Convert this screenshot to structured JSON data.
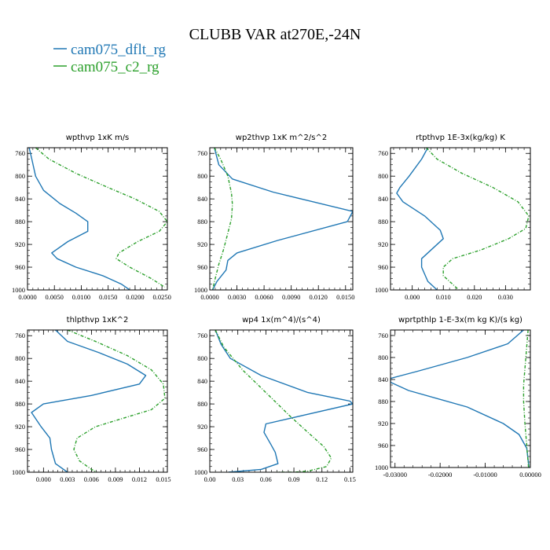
{
  "figure": {
    "title": "CLUBB VAR at270E,-24N",
    "legend": [
      {
        "label": "cam075_dflt_rg",
        "color": "#1f77b4",
        "style": "solid"
      },
      {
        "label": "cam075_c2_rg",
        "color": "#2ca02c",
        "style": "dashed"
      }
    ]
  },
  "chart_data": [
    {
      "type": "line",
      "title": "wpthvp  1xK m/s",
      "xlim": [
        0,
        0.026
      ],
      "ylim": [
        1000,
        750
      ],
      "y_inverted": true,
      "xticks": [
        "0.0000",
        "0.0050",
        "0.0100",
        "0.0150",
        "0.0200",
        "0.0250"
      ],
      "xtick_values": [
        0,
        0.005,
        0.01,
        0.015,
        0.02,
        0.025
      ],
      "yticks": [
        "760",
        "800",
        "840",
        "880",
        "920",
        "960",
        "1000"
      ],
      "ytick_values": [
        760,
        800,
        840,
        880,
        920,
        960,
        1000
      ],
      "series": [
        {
          "name": "cam075_dflt_rg",
          "x": [
            0.0003,
            0.0008,
            0.0015,
            0.003,
            0.006,
            0.009,
            0.0112,
            0.0112,
            0.0075,
            0.0045,
            0.0055,
            0.009,
            0.014,
            0.0175,
            0.019
          ],
          "y": [
            750,
            770,
            800,
            825,
            848,
            865,
            880,
            897,
            915,
            935,
            945,
            960,
            975,
            990,
            1000
          ]
        },
        {
          "name": "cam075_c2_rg",
          "x": [
            0.0015,
            0.004,
            0.009,
            0.015,
            0.02,
            0.0245,
            0.026,
            0.0245,
            0.0205,
            0.017,
            0.0165,
            0.019,
            0.023,
            0.0255
          ],
          "y": [
            750,
            770,
            795,
            820,
            840,
            862,
            880,
            897,
            915,
            935,
            945,
            960,
            980,
            995
          ]
        }
      ]
    },
    {
      "type": "line",
      "title": "wp2thvp  1xK m^2/s^2",
      "xlim": [
        0,
        0.0158
      ],
      "ylim": [
        1000,
        750
      ],
      "y_inverted": true,
      "xticks": [
        "0.0000",
        "0.0030",
        "0.0060",
        "0.0090",
        "0.0120",
        "0.0150"
      ],
      "xtick_values": [
        0,
        0.003,
        0.006,
        0.009,
        0.012,
        0.015
      ],
      "yticks": [
        "760",
        "800",
        "840",
        "880",
        "920",
        "960",
        "1000"
      ],
      "ytick_values": [
        760,
        800,
        840,
        880,
        920,
        960,
        1000
      ],
      "series": [
        {
          "name": "cam075_dflt_rg",
          "x": [
            0.0005,
            0.001,
            0.0025,
            0.007,
            0.0158,
            0.0152,
            0.0075,
            0.003,
            0.002,
            0.0018,
            0.0008,
            0.0003
          ],
          "y": [
            750,
            780,
            805,
            828,
            862,
            880,
            913,
            935,
            948,
            965,
            985,
            1000
          ]
        },
        {
          "name": "cam075_c2_rg",
          "x": [
            0.0005,
            0.0012,
            0.002,
            0.0024,
            0.0025,
            0.0024,
            0.002,
            0.0015,
            0.001,
            0.0006,
            0.0003
          ],
          "y": [
            750,
            770,
            800,
            830,
            850,
            875,
            900,
            930,
            955,
            980,
            1000
          ]
        }
      ]
    },
    {
      "type": "line",
      "title": "rtpthvp  1E-3x(kg/kg) K",
      "xlim": [
        -0.007,
        0.038
      ],
      "ylim": [
        1000,
        750
      ],
      "y_inverted": true,
      "xticks": [
        "0.000",
        "0.010",
        "0.020",
        "0.030"
      ],
      "xtick_values": [
        0,
        0.01,
        0.02,
        0.03
      ],
      "yticks": [
        "760",
        "800",
        "840",
        "880",
        "920",
        "960",
        "1000"
      ],
      "ytick_values": [
        760,
        800,
        840,
        880,
        920,
        960,
        1000
      ],
      "series": [
        {
          "name": "cam075_dflt_rg",
          "x": [
            0.005,
            0.003,
            -0.001,
            -0.004,
            -0.005,
            -0.003,
            0.004,
            0.009,
            0.01,
            0.006,
            0.003,
            0.003,
            0.005,
            0.008
          ],
          "y": [
            750,
            770,
            800,
            820,
            830,
            845,
            870,
            895,
            910,
            930,
            945,
            960,
            985,
            1000
          ]
        },
        {
          "name": "cam075_c2_rg",
          "x": [
            0.0045,
            0.008,
            0.016,
            0.026,
            0.034,
            0.0375,
            0.0365,
            0.031,
            0.022,
            0.013,
            0.01,
            0.01,
            0.013,
            0.015
          ],
          "y": [
            750,
            770,
            795,
            820,
            845,
            870,
            892,
            910,
            930,
            945,
            960,
            975,
            990,
            1000
          ]
        }
      ]
    },
    {
      "type": "line",
      "title": "thlpthvp  1xK^2",
      "xlim": [
        -0.002,
        0.0155
      ],
      "ylim": [
        1000,
        750
      ],
      "y_inverted": true,
      "xticks": [
        "0.000",
        "0.003",
        "0.006",
        "0.009",
        "0.012",
        "0.015"
      ],
      "xtick_values": [
        0,
        0.003,
        0.006,
        0.009,
        0.012,
        0.015
      ],
      "yticks": [
        "760",
        "800",
        "840",
        "880",
        "920",
        "960",
        "1000"
      ],
      "ytick_values": [
        760,
        800,
        840,
        880,
        920,
        960,
        1000
      ],
      "series": [
        {
          "name": "cam075_dflt_rg",
          "x": [
            0.0015,
            0.003,
            0.007,
            0.0105,
            0.0128,
            0.012,
            0.006,
            0.0,
            -0.0015,
            -0.0003,
            0.0008,
            0.001,
            0.0015,
            0.003
          ],
          "y": [
            750,
            770,
            790,
            810,
            830,
            845,
            865,
            880,
            895,
            920,
            940,
            960,
            985,
            1000
          ]
        },
        {
          "name": "cam075_c2_rg",
          "x": [
            0.003,
            0.0065,
            0.0105,
            0.0135,
            0.015,
            0.0152,
            0.0135,
            0.01,
            0.0065,
            0.0042,
            0.0038,
            0.0045,
            0.006,
            0.0067
          ],
          "y": [
            750,
            770,
            795,
            820,
            845,
            870,
            890,
            905,
            920,
            940,
            960,
            980,
            995,
            1000
          ]
        }
      ]
    },
    {
      "type": "line",
      "title": "wp4  1x(m^4)/(s^4)",
      "xlim": [
        0,
        0.153
      ],
      "ylim": [
        1000,
        750
      ],
      "y_inverted": true,
      "xticks": [
        "0.00",
        "0.03",
        "0.06",
        "0.09",
        "0.12",
        "0.15"
      ],
      "xtick_values": [
        0,
        0.03,
        0.06,
        0.09,
        0.12,
        0.15
      ],
      "yticks": [
        "760",
        "800",
        "840",
        "880",
        "920",
        "960",
        "1000"
      ],
      "ytick_values": [
        760,
        800,
        840,
        880,
        920,
        960,
        1000
      ],
      "series": [
        {
          "name": "cam075_dflt_rg",
          "x": [
            0.006,
            0.012,
            0.022,
            0.055,
            0.105,
            0.15,
            0.153,
            0.1,
            0.06,
            0.058,
            0.065,
            0.07,
            0.073,
            0.055,
            0.02
          ],
          "y": [
            750,
            775,
            800,
            830,
            860,
            875,
            880,
            900,
            915,
            930,
            950,
            965,
            985,
            995,
            1000
          ]
        },
        {
          "name": "cam075_c2_rg",
          "x": [
            0.006,
            0.015,
            0.035,
            0.06,
            0.085,
            0.105,
            0.122,
            0.13,
            0.125,
            0.105,
            0.09,
            0.072
          ],
          "y": [
            750,
            780,
            820,
            860,
            900,
            930,
            955,
            975,
            990,
            998,
            1000,
            1000
          ]
        }
      ]
    },
    {
      "type": "line",
      "title": "wprtpthlp  1-E-3x(m kg K)/(s kg)",
      "xlim": [
        -0.031,
        0.0
      ],
      "ylim": [
        1000,
        750
      ],
      "y_inverted": true,
      "xticks": [
        "-0.03000",
        "-0.02000",
        "-0.01000",
        "0.00000"
      ],
      "xtick_values": [
        -0.03,
        -0.02,
        -0.01,
        0.0
      ],
      "yticks": [
        "760",
        "800",
        "840",
        "880",
        "920",
        "960",
        "1000"
      ],
      "ytick_values": [
        760,
        800,
        840,
        880,
        920,
        960,
        1000
      ],
      "series": [
        {
          "name": "cam075_dflt_rg",
          "x": [
            -0.0015,
            -0.005,
            -0.014,
            -0.025,
            -0.031,
            -0.031,
            -0.027,
            -0.014,
            -0.006,
            -0.0025,
            -0.0008,
            -0.0003
          ],
          "y": [
            750,
            775,
            800,
            825,
            838,
            845,
            860,
            890,
            920,
            940,
            965,
            1000
          ]
        },
        {
          "name": "cam075_c2_rg",
          "x": [
            -0.0005,
            -0.0008,
            -0.0012,
            -0.0015,
            -0.0015,
            -0.0012,
            -0.0008,
            -0.0004
          ],
          "y": [
            750,
            780,
            820,
            850,
            880,
            920,
            960,
            1000
          ]
        }
      ]
    }
  ]
}
